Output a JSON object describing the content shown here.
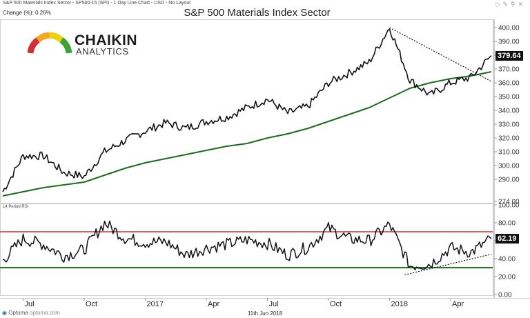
{
  "header": {
    "subtitle": "S&P 500 Materials Index Sector - SP500-15 (SPI) - 1 Day Line Chart - USD - No Layout",
    "change": "Change (%): 0.26%",
    "title": "S&P 500 Materials Index Sector"
  },
  "logo": {
    "line1": "CHAIKIN",
    "line2": "ANALYTICS"
  },
  "footer": {
    "provider": "Optuma",
    "provider_url": "optuma.com",
    "date": "11th Jun 2018"
  },
  "colors": {
    "price": "#111111",
    "ma": "#1e6b1e",
    "overbought": "#d0312d",
    "oversold": "#1f7a1f",
    "trend": "#111111"
  },
  "chart_data": [
    {
      "type": "line",
      "title": "S&P 500 Materials Index Sector",
      "ylim": [
        274,
        405
      ],
      "y_ticks": [
        "400.00",
        "390.00",
        "380.00",
        "370.00",
        "360.00",
        "350.00",
        "340.00",
        "330.00",
        "320.00",
        "310.00",
        "300.00",
        "290.00",
        "274.00"
      ],
      "x_ticks": [
        "Jul",
        "Oct",
        "2017",
        "Apr",
        "Jul",
        "Oct",
        "2018",
        "Apr"
      ],
      "last_value_label": "379.64",
      "series": [
        {
          "role": "price",
          "x": [
            "2016-06",
            "2016-07",
            "2016-08",
            "2016-09",
            "2016-10",
            "2016-11",
            "2016-12",
            "2017-01",
            "2017-02",
            "2017-03",
            "2017-04",
            "2017-05",
            "2017-06",
            "2017-07",
            "2017-08",
            "2017-09",
            "2017-10",
            "2017-11",
            "2017-12",
            "2018-01",
            "2018-02",
            "2018-03",
            "2018-04",
            "2018-05",
            "2018-06"
          ],
          "values": [
            281,
            307,
            307,
            295,
            292,
            310,
            318,
            325,
            331,
            327,
            332,
            335,
            342,
            348,
            338,
            343,
            360,
            367,
            375,
            400,
            362,
            351,
            360,
            364,
            379.64
          ]
        },
        {
          "role": "moving-average",
          "x": [
            "2016-06",
            "2016-07",
            "2016-08",
            "2016-09",
            "2016-10",
            "2016-11",
            "2016-12",
            "2017-01",
            "2017-02",
            "2017-03",
            "2017-04",
            "2017-05",
            "2017-06",
            "2017-07",
            "2017-08",
            "2017-09",
            "2017-10",
            "2017-11",
            "2017-12",
            "2018-01",
            "2018-02",
            "2018-03",
            "2018-04",
            "2018-05",
            "2018-06"
          ],
          "values": [
            278,
            281,
            284,
            286,
            288,
            293,
            298,
            302,
            305,
            308,
            311,
            314,
            316,
            320,
            323,
            327,
            332,
            337,
            342,
            349,
            356,
            360,
            363,
            365,
            368
          ]
        }
      ],
      "trendline": {
        "x": [
          "2018-01",
          "2018-06"
        ],
        "values": [
          400,
          361
        ]
      }
    },
    {
      "type": "line",
      "title": "14 Period RSI",
      "ylim": [
        0,
        100
      ],
      "y_ticks": [
        "100.00",
        "80.00",
        "60.00",
        "40.00",
        "20.00",
        "0.00"
      ],
      "last_value_label": "62.19",
      "bands": {
        "overbought": 70,
        "oversold": 30
      },
      "series": [
        {
          "role": "rsi",
          "x": [
            "2016-06",
            "2016-07",
            "2016-08",
            "2016-09",
            "2016-10",
            "2016-11",
            "2016-12",
            "2017-01",
            "2017-02",
            "2017-03",
            "2017-04",
            "2017-05",
            "2017-06",
            "2017-07",
            "2017-08",
            "2017-09",
            "2017-10",
            "2017-11",
            "2017-12",
            "2018-01",
            "2018-02",
            "2018-03",
            "2018-04",
            "2018-05",
            "2018-06"
          ],
          "values": [
            38,
            62,
            56,
            43,
            50,
            80,
            63,
            58,
            59,
            44,
            52,
            56,
            61,
            57,
            44,
            53,
            74,
            62,
            60,
            78,
            32,
            34,
            52,
            47,
            62.19
          ]
        }
      ],
      "trendline": {
        "x": [
          "2018-01",
          "2018-06"
        ],
        "values": [
          22,
          45
        ]
      }
    }
  ]
}
